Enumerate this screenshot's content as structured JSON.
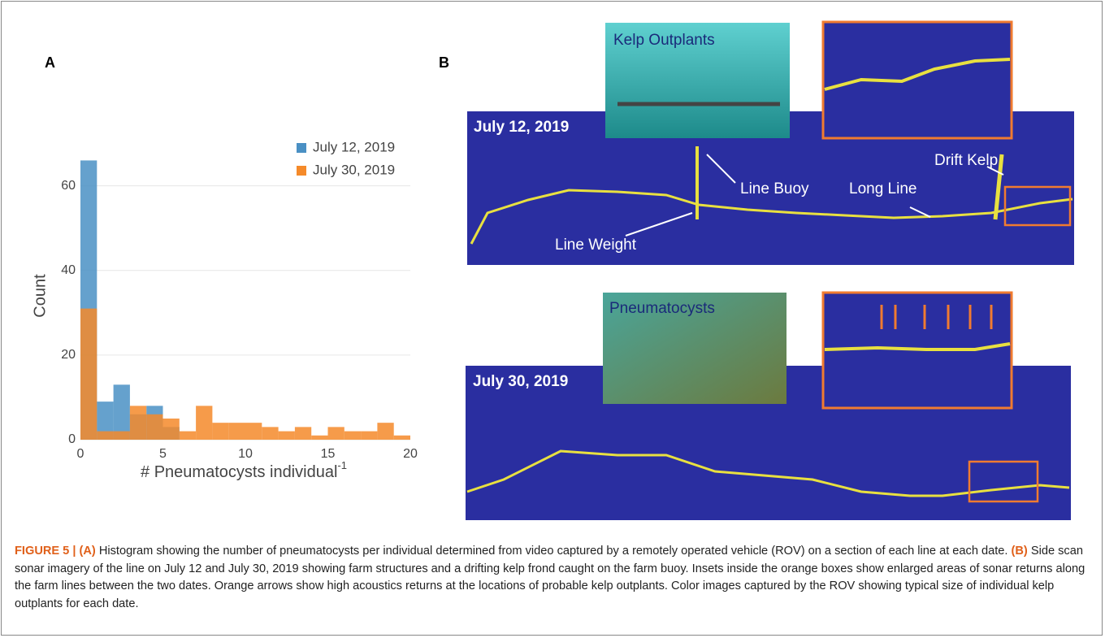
{
  "panel_labels": {
    "a": "A",
    "b": "B"
  },
  "chart_data": {
    "type": "histogram",
    "xlabel": "# Pneumatocysts individual",
    "xlabel_sup": "-1",
    "ylabel": "Count",
    "bins": [
      0,
      1,
      2,
      3,
      4,
      5,
      6,
      7,
      8,
      9,
      10,
      11,
      12,
      13,
      14,
      15,
      16,
      17,
      18,
      19,
      20
    ],
    "series": [
      {
        "name": "July 12, 2019",
        "color": "#4a90c4",
        "values": [
          66,
          9,
          13,
          6,
          8,
          3,
          0,
          0,
          0,
          0,
          0,
          0,
          0,
          0,
          0,
          0,
          0,
          0,
          0,
          0
        ]
      },
      {
        "name": "July 30, 2019",
        "color": "#f58a2a",
        "values": [
          31,
          2,
          2,
          8,
          6,
          5,
          2,
          8,
          4,
          4,
          4,
          3,
          2,
          3,
          1,
          3,
          2,
          2,
          4,
          1
        ]
      }
    ],
    "xlim": [
      0,
      20
    ],
    "ylim": [
      0,
      68
    ],
    "xticks": [
      0,
      5,
      10,
      15,
      20
    ],
    "yticks": [
      0,
      20,
      40,
      60
    ],
    "grid": true,
    "legend": "upper right"
  },
  "panel_b": {
    "top": {
      "date": "July 12, 2019",
      "photo_label": "Kelp Outplants",
      "labels": [
        "Line Buoy",
        "Long Line",
        "Drift Kelp",
        "Line Weight"
      ]
    },
    "bottom": {
      "date": "July 30, 2019",
      "photo_label": "Pneumatocysts"
    }
  },
  "caption": [
    {
      "text": "FIGURE 5 | (A)",
      "bold": true
    },
    {
      "text": " Histogram showing the number of pneumatocysts per individual determined from video captured by a remotely operated vehicle (ROV) on a section of each line at each date. ",
      "bold": false
    },
    {
      "text": "(B)",
      "bold": true
    },
    {
      "text": " Side scan sonar imagery of the line on July 12 and July 30, 2019 showing farm structures and a drifting kelp frond caught on the farm buoy. Insets inside the orange boxes show enlarged areas of sonar returns along the farm lines between the two dates. Orange arrows show high acoustics returns at the locations of probable kelp outplants. Color images captured by the ROV showing typical size of individual kelp outplants for each date.",
      "bold": false
    }
  ]
}
